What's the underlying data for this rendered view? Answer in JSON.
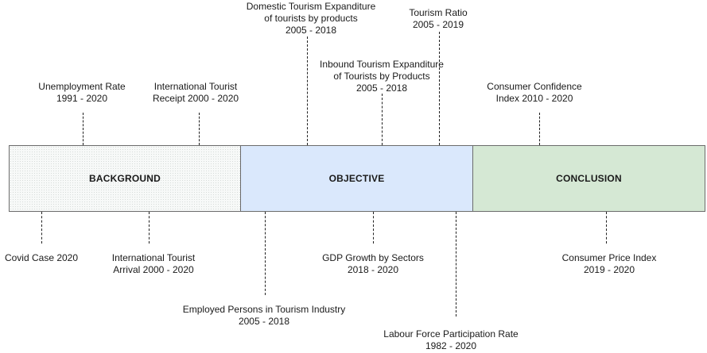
{
  "blocks": {
    "background": "BACKGROUND",
    "objective": "OBJECTIVE",
    "conclusion": "CONCLUSION"
  },
  "labels": {
    "unemployment": {
      "line1": "Unemployment Rate",
      "line2": "1991 - 2020"
    },
    "intl_receipt": {
      "line1": "International Tourist",
      "line2": "Receipt 2000 - 2020"
    },
    "domestic_exp": {
      "line1": "Domestic Tourism Expanditure",
      "line2": "of tourists by products",
      "line3": "2005 - 2018"
    },
    "inbound_exp": {
      "line1": "Inbound Tourism Expanditure",
      "line2": "of Tourists by Products",
      "line3": "2005 - 2018"
    },
    "tourism_ratio": {
      "line1": "Tourism Ratio",
      "line2": "2005 - 2019"
    },
    "consumer_conf": {
      "line1": "Consumer Confidence",
      "line2": "Index 2010 - 2020"
    },
    "covid": {
      "line1": "Covid Case 2020"
    },
    "intl_arrival": {
      "line1": "International Tourist",
      "line2": "Arrival 2000 - 2020"
    },
    "employed": {
      "line1": "Employed Persons in Tourism Industry",
      "line2": "2005 - 2018"
    },
    "gdp": {
      "line1": "GDP Growth by Sectors",
      "line2": "2018 - 2020"
    },
    "labour": {
      "line1": "Labour Force Participation Rate",
      "line2": "1982 - 2020"
    },
    "cpi": {
      "line1": "Consumer Price Index",
      "line2": "2019 - 2020"
    }
  }
}
